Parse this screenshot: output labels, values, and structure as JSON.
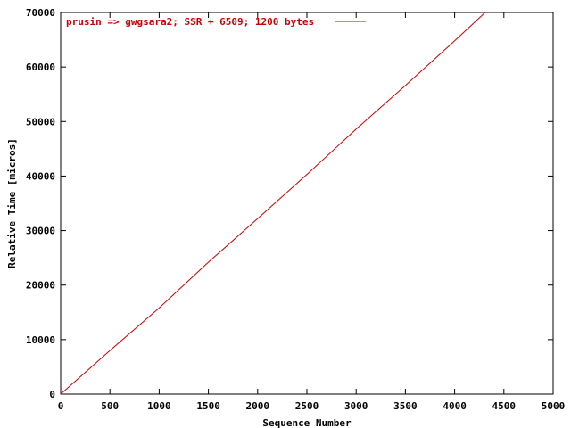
{
  "chart_data": {
    "type": "line",
    "title": "",
    "xlabel": "Sequence Number",
    "ylabel": "Relative Time [micros]",
    "xlim": [
      0,
      5000
    ],
    "ylim": [
      0,
      70000
    ],
    "x_ticks": [
      "0",
      "500",
      "1000",
      "1500",
      "2000",
      "2500",
      "3000",
      "3500",
      "4000",
      "4500",
      "5000"
    ],
    "y_ticks": [
      "0",
      "10000",
      "20000",
      "30000",
      "40000",
      "50000",
      "60000",
      "70000"
    ],
    "grid": false,
    "legend_position": "top-left",
    "series": [
      {
        "name": "prusin => gwgsara2; SSR + 6509; 1200 bytes",
        "color": "#cc0000",
        "x": [
          0,
          500,
          1000,
          1500,
          2000,
          2500,
          3000,
          3500,
          4000,
          4310
        ],
        "y": [
          0,
          8000,
          15800,
          24200,
          32200,
          40300,
          48600,
          56600,
          64800,
          70000
        ]
      }
    ]
  }
}
